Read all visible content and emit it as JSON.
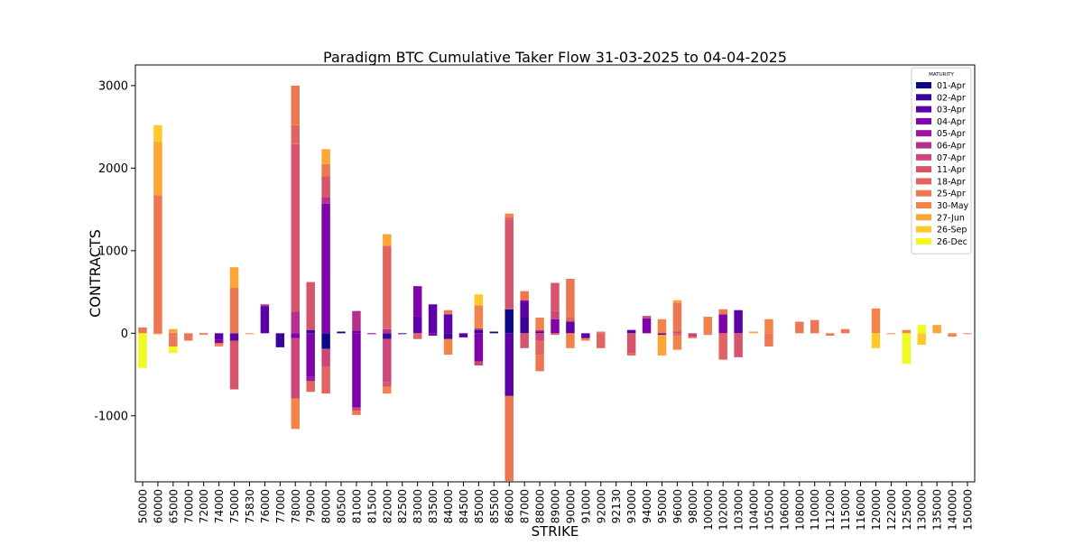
{
  "chart_data": {
    "type": "bar",
    "stacked": "diverging",
    "title": "Paradigm BTC Cumulative Taker Flow 31-03-2025 to 04-04-2025",
    "xlabel": "STRIKE",
    "ylabel": "CONTRACTS",
    "ylim": [
      -1800,
      3250
    ],
    "yticks": [
      -1000,
      0,
      1000,
      2000,
      3000
    ],
    "ytick_labels": [
      "-1000",
      "0",
      "1000",
      "2000",
      "3000"
    ],
    "grid": false,
    "legend": {
      "title": "MATURITY",
      "placement": "top-right"
    },
    "categories": [
      "50000",
      "60000",
      "65000",
      "70000",
      "72000",
      "74000",
      "75000",
      "75830",
      "76000",
      "77000",
      "78000",
      "79000",
      "80000",
      "80500",
      "81000",
      "81500",
      "82000",
      "82500",
      "83000",
      "83500",
      "84000",
      "84500",
      "85000",
      "85500",
      "86000",
      "87000",
      "88000",
      "89000",
      "90000",
      "91000",
      "92000",
      "92130",
      "93000",
      "94000",
      "95000",
      "96000",
      "98000",
      "100000",
      "102000",
      "103000",
      "104000",
      "105000",
      "106000",
      "108000",
      "110000",
      "112000",
      "115000",
      "116000",
      "120000",
      "122000",
      "125000",
      "130000",
      "135000",
      "140000",
      "150000"
    ],
    "series": [
      {
        "name": "01-Apr",
        "color": "#0d0887",
        "values": [
          0,
          0,
          0,
          0,
          0,
          0,
          0,
          0,
          0,
          0,
          0,
          0,
          -190,
          20,
          0,
          0,
          0,
          0,
          0,
          0,
          0,
          0,
          0,
          20,
          290,
          0,
          0,
          0,
          0,
          0,
          0,
          0,
          0,
          0,
          0,
          0,
          0,
          0,
          0,
          0,
          0,
          0,
          0,
          0,
          0,
          0,
          0,
          0,
          0,
          0,
          0,
          0,
          0,
          0,
          0
        ]
      },
      {
        "name": "02-Apr",
        "color": "#3a049a",
        "values": [
          0,
          0,
          0,
          0,
          0,
          0,
          0,
          0,
          0,
          -170,
          0,
          40,
          0,
          0,
          0,
          0,
          -70,
          -10,
          0,
          0,
          -70,
          0,
          40,
          0,
          0,
          200,
          0,
          0,
          0,
          0,
          0,
          0,
          0,
          0,
          0,
          0,
          0,
          0,
          0,
          0,
          0,
          0,
          0,
          0,
          0,
          0,
          0,
          0,
          0,
          0,
          0,
          0,
          0,
          0,
          0
        ]
      },
      {
        "name": "03-Apr",
        "color": "#5c01a6",
        "values": [
          0,
          0,
          0,
          0,
          0,
          -80,
          -90,
          0,
          330,
          0,
          0,
          0,
          0,
          0,
          30,
          0,
          0,
          0,
          210,
          350,
          230,
          -50,
          0,
          0,
          -760,
          180,
          20,
          0,
          140,
          -60,
          0,
          0,
          40,
          0,
          -20,
          0,
          0,
          0,
          0,
          280,
          0,
          0,
          0,
          0,
          0,
          0,
          0,
          0,
          0,
          0,
          0,
          0,
          0,
          0,
          0
        ]
      },
      {
        "name": "04-Apr",
        "color": "#7e03a8",
        "values": [
          0,
          0,
          0,
          0,
          0,
          -40,
          0,
          0,
          0,
          0,
          -60,
          -530,
          1570,
          0,
          -900,
          -10,
          0,
          0,
          360,
          -30,
          0,
          0,
          -340,
          0,
          0,
          20,
          0,
          170,
          0,
          0,
          0,
          0,
          0,
          180,
          0,
          0,
          0,
          0,
          230,
          0,
          0,
          0,
          0,
          0,
          0,
          0,
          0,
          0,
          0,
          0,
          0,
          0,
          0,
          0,
          0
        ]
      },
      {
        "name": "05-Apr",
        "color": "#9c179e",
        "values": [
          0,
          0,
          0,
          0,
          0,
          0,
          0,
          0,
          0,
          0,
          0,
          -50,
          0,
          0,
          0,
          0,
          0,
          0,
          0,
          0,
          0,
          0,
          0,
          0,
          0,
          0,
          0,
          0,
          0,
          0,
          0,
          0,
          0,
          0,
          0,
          0,
          0,
          0,
          0,
          0,
          0,
          0,
          0,
          0,
          0,
          0,
          0,
          0,
          0,
          0,
          0,
          0,
          0,
          0,
          0
        ]
      },
      {
        "name": "06-Apr",
        "color": "#b52f8c",
        "values": [
          0,
          0,
          0,
          0,
          0,
          0,
          0,
          0,
          20,
          0,
          260,
          0,
          80,
          0,
          240,
          0,
          50,
          0,
          0,
          0,
          0,
          0,
          20,
          0,
          0,
          0,
          20,
          0,
          0,
          0,
          0,
          0,
          0,
          0,
          0,
          0,
          0,
          0,
          0,
          0,
          0,
          0,
          0,
          0,
          0,
          0,
          0,
          0,
          0,
          0,
          0,
          0,
          0,
          0,
          0
        ]
      },
      {
        "name": "07-Apr",
        "color": "#cc4778",
        "values": [
          0,
          0,
          0,
          0,
          -10,
          0,
          0,
          0,
          0,
          0,
          -730,
          0,
          -220,
          0,
          -40,
          0,
          -520,
          0,
          0,
          0,
          0,
          0,
          -50,
          0,
          0,
          0,
          -90,
          100,
          0,
          0,
          0,
          0,
          0,
          30,
          0,
          20,
          -40,
          0,
          0,
          0,
          0,
          0,
          0,
          0,
          0,
          0,
          0,
          0,
          0,
          0,
          0,
          0,
          0,
          0,
          0
        ]
      },
      {
        "name": "11-Apr",
        "color": "#d6556d",
        "values": [
          0,
          0,
          0,
          0,
          0,
          0,
          -590,
          0,
          0,
          0,
          2030,
          580,
          250,
          0,
          0,
          0,
          -60,
          0,
          0,
          0,
          0,
          0,
          0,
          0,
          1080,
          -180,
          0,
          340,
          0,
          0,
          0,
          0,
          -240,
          0,
          0,
          0,
          0,
          0,
          0,
          -290,
          0,
          0,
          0,
          0,
          0,
          0,
          0,
          0,
          0,
          0,
          0,
          0,
          0,
          0,
          0
        ]
      },
      {
        "name": "18-Apr",
        "color": "#e16462",
        "values": [
          0,
          0,
          -20,
          0,
          0,
          0,
          0,
          0,
          0,
          0,
          230,
          -130,
          -320,
          0,
          0,
          0,
          1010,
          0,
          -70,
          0,
          0,
          0,
          0,
          0,
          40,
          0,
          -170,
          -20,
          50,
          0,
          -180,
          0,
          -30,
          0,
          0,
          -30,
          0,
          0,
          -320,
          0,
          0,
          0,
          0,
          0,
          0,
          0,
          0,
          0,
          0,
          0,
          0,
          0,
          0,
          0,
          0
        ]
      },
      {
        "name": "25-Apr",
        "color": "#ec7853",
        "values": [
          70,
          1670,
          -140,
          -90,
          0,
          -20,
          550,
          0,
          0,
          0,
          480,
          0,
          150,
          0,
          -50,
          0,
          0,
          0,
          0,
          0,
          50,
          0,
          0,
          0,
          -1030,
          110,
          -200,
          0,
          470,
          0,
          20,
          0,
          0,
          0,
          0,
          350,
          -20,
          -20,
          60,
          0,
          0,
          -160,
          0,
          140,
          160,
          -30,
          50,
          0,
          0,
          0,
          0,
          0,
          0,
          0,
          0
        ]
      },
      {
        "name": "30-May",
        "color": "#f2844b",
        "values": [
          0,
          -10,
          0,
          0,
          0,
          -20,
          0,
          -10,
          0,
          0,
          -370,
          0,
          0,
          0,
          0,
          0,
          -80,
          0,
          0,
          0,
          -190,
          0,
          280,
          0,
          40,
          0,
          150,
          0,
          -180,
          -30,
          0,
          0,
          0,
          0,
          170,
          -170,
          0,
          200,
          0,
          0,
          0,
          170,
          0,
          0,
          0,
          0,
          0,
          0,
          300,
          -10,
          40,
          0,
          0,
          -40,
          -10
        ]
      },
      {
        "name": "27-Jun",
        "color": "#fca636",
        "values": [
          0,
          650,
          50,
          0,
          -10,
          0,
          250,
          0,
          0,
          0,
          0,
          0,
          180,
          0,
          0,
          0,
          140,
          0,
          0,
          0,
          0,
          0,
          0,
          0,
          0,
          0,
          0,
          0,
          0,
          0,
          0,
          0,
          0,
          0,
          -250,
          30,
          0,
          0,
          0,
          0,
          20,
          0,
          0,
          0,
          0,
          0,
          0,
          0,
          0,
          0,
          0,
          0,
          100,
          0,
          0
        ]
      },
      {
        "name": "26-Sep",
        "color": "#fccb2a",
        "values": [
          0,
          200,
          0,
          0,
          0,
          0,
          0,
          0,
          0,
          0,
          0,
          0,
          0,
          0,
          0,
          0,
          0,
          0,
          0,
          0,
          0,
          0,
          130,
          0,
          0,
          0,
          0,
          0,
          0,
          0,
          0,
          0,
          0,
          0,
          0,
          0,
          0,
          0,
          0,
          0,
          0,
          0,
          0,
          0,
          0,
          0,
          0,
          0,
          -180,
          0,
          0,
          -140,
          0,
          0,
          0
        ]
      },
      {
        "name": "26Dec",
        "label": "26-Dec",
        "color": "#f0f921",
        "values": [
          -420,
          0,
          -80,
          0,
          0,
          0,
          0,
          0,
          0,
          0,
          0,
          0,
          0,
          0,
          0,
          0,
          0,
          0,
          0,
          0,
          0,
          0,
          0,
          0,
          0,
          0,
          0,
          0,
          0,
          0,
          0,
          0,
          0,
          0,
          0,
          0,
          0,
          0,
          0,
          0,
          0,
          0,
          0,
          0,
          0,
          0,
          0,
          0,
          0,
          0,
          -370,
          100,
          0,
          0,
          0
        ]
      }
    ]
  }
}
